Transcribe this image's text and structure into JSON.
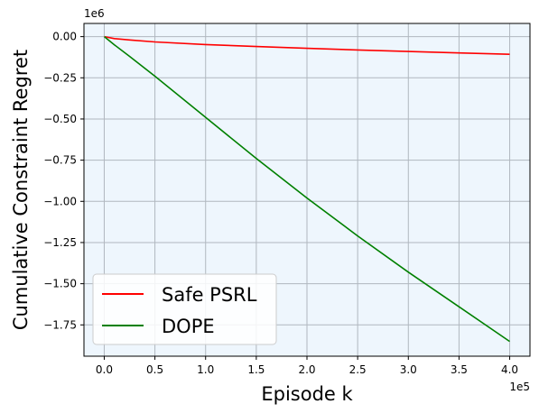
{
  "chart_data": {
    "type": "line",
    "title": "",
    "xlabel": "Episode k",
    "ylabel": "Cumulative Constraint Regret",
    "x_offset_label": "1e5",
    "y_offset_label": "1e6",
    "xlim": [
      -0.2,
      4.2
    ],
    "ylim": [
      -1.94,
      0.08
    ],
    "x_ticks": [
      0.0,
      0.5,
      1.0,
      1.5,
      2.0,
      2.5,
      3.0,
      3.5,
      4.0
    ],
    "x_tick_labels": [
      "0.0",
      "0.5",
      "1.0",
      "1.5",
      "2.0",
      "2.5",
      "3.0",
      "3.5",
      "4.0"
    ],
    "y_ticks": [
      0.0,
      -0.25,
      -0.5,
      -0.75,
      -1.0,
      -1.25,
      -1.5,
      -1.75
    ],
    "y_tick_labels": [
      "0.00",
      "−0.25",
      "−0.50",
      "−0.75",
      "−1.00",
      "−1.25",
      "−1.50",
      "−1.75"
    ],
    "grid": true,
    "plot_background": "#eef6fd",
    "grid_color": "#b0b7bf",
    "legend_position": "lower-left",
    "series": [
      {
        "name": "Safe PSRL",
        "color": "#ff0000",
        "x": [
          0.0,
          0.1,
          0.25,
          0.5,
          1.0,
          1.5,
          2.0,
          2.5,
          3.0,
          3.5,
          4.0
        ],
        "y": [
          0.0,
          -0.012,
          -0.02,
          -0.032,
          -0.048,
          -0.06,
          -0.071,
          -0.081,
          -0.09,
          -0.099,
          -0.107
        ]
      },
      {
        "name": "DOPE",
        "color": "#008000",
        "x": [
          0.0,
          0.1,
          0.25,
          0.5,
          1.0,
          1.5,
          2.0,
          2.5,
          3.0,
          3.5,
          4.0
        ],
        "y": [
          0.0,
          -0.05,
          -0.12,
          -0.24,
          -0.49,
          -0.74,
          -0.98,
          -1.21,
          -1.43,
          -1.64,
          -1.85
        ]
      }
    ]
  }
}
